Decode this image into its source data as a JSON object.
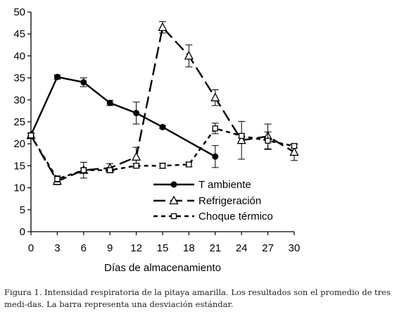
{
  "chart_data": {
    "type": "line",
    "xlabel": "Días de almacenamiento",
    "ylabel": "",
    "xlim": [
      0,
      30
    ],
    "ylim": [
      0,
      50
    ],
    "x_ticks": [
      0,
      3,
      6,
      9,
      12,
      15,
      18,
      21,
      24,
      27,
      30
    ],
    "y_ticks": [
      0,
      5,
      10,
      15,
      20,
      25,
      30,
      35,
      40,
      45,
      50
    ],
    "grid": false,
    "legend_position": "bottom-right",
    "series": [
      {
        "name": "T ambiente",
        "marker": "filled-circle",
        "line": "solid",
        "x": [
          0,
          3,
          6,
          9,
          12,
          15,
          21
        ],
        "y": [
          22,
          35.2,
          34,
          29.3,
          27,
          23.8,
          17.1
        ],
        "error": [
          0.5,
          0.5,
          1,
          0.6,
          2.5,
          0.3,
          2.5
        ]
      },
      {
        "name": "Refrigeración",
        "marker": "open-triangle",
        "line": "long-dash",
        "x": [
          0,
          3,
          6,
          9,
          12,
          15,
          18,
          21,
          24,
          27,
          30
        ],
        "y": [
          21.9,
          11.5,
          14,
          14.5,
          17,
          46.5,
          40,
          30.5,
          20.8,
          21.7,
          18.1
        ],
        "error": [
          0.5,
          0.8,
          1.8,
          1,
          2.2,
          1.3,
          2.5,
          1.8,
          4.3,
          2.8,
          1.9
        ]
      },
      {
        "name": "Choque térmico",
        "marker": "open-square",
        "line": "short-dash",
        "x": [
          0,
          3,
          6,
          9,
          12,
          15,
          18,
          21,
          24,
          27,
          30
        ],
        "y": [
          21.9,
          12,
          14,
          14,
          15,
          15,
          15.3,
          23.5,
          21.8,
          20.7,
          19.5
        ],
        "error": [
          0.5,
          0.7,
          0.5,
          0.6,
          0.5,
          0.6,
          0.5,
          1.2,
          0.5,
          2,
          0.4
        ]
      }
    ]
  },
  "caption": "Figura 1. Intensidad respiratoria de la pitaya amarilla. Los resultados son el promedio de tres medi-das. La barra representa una desviación estándar."
}
